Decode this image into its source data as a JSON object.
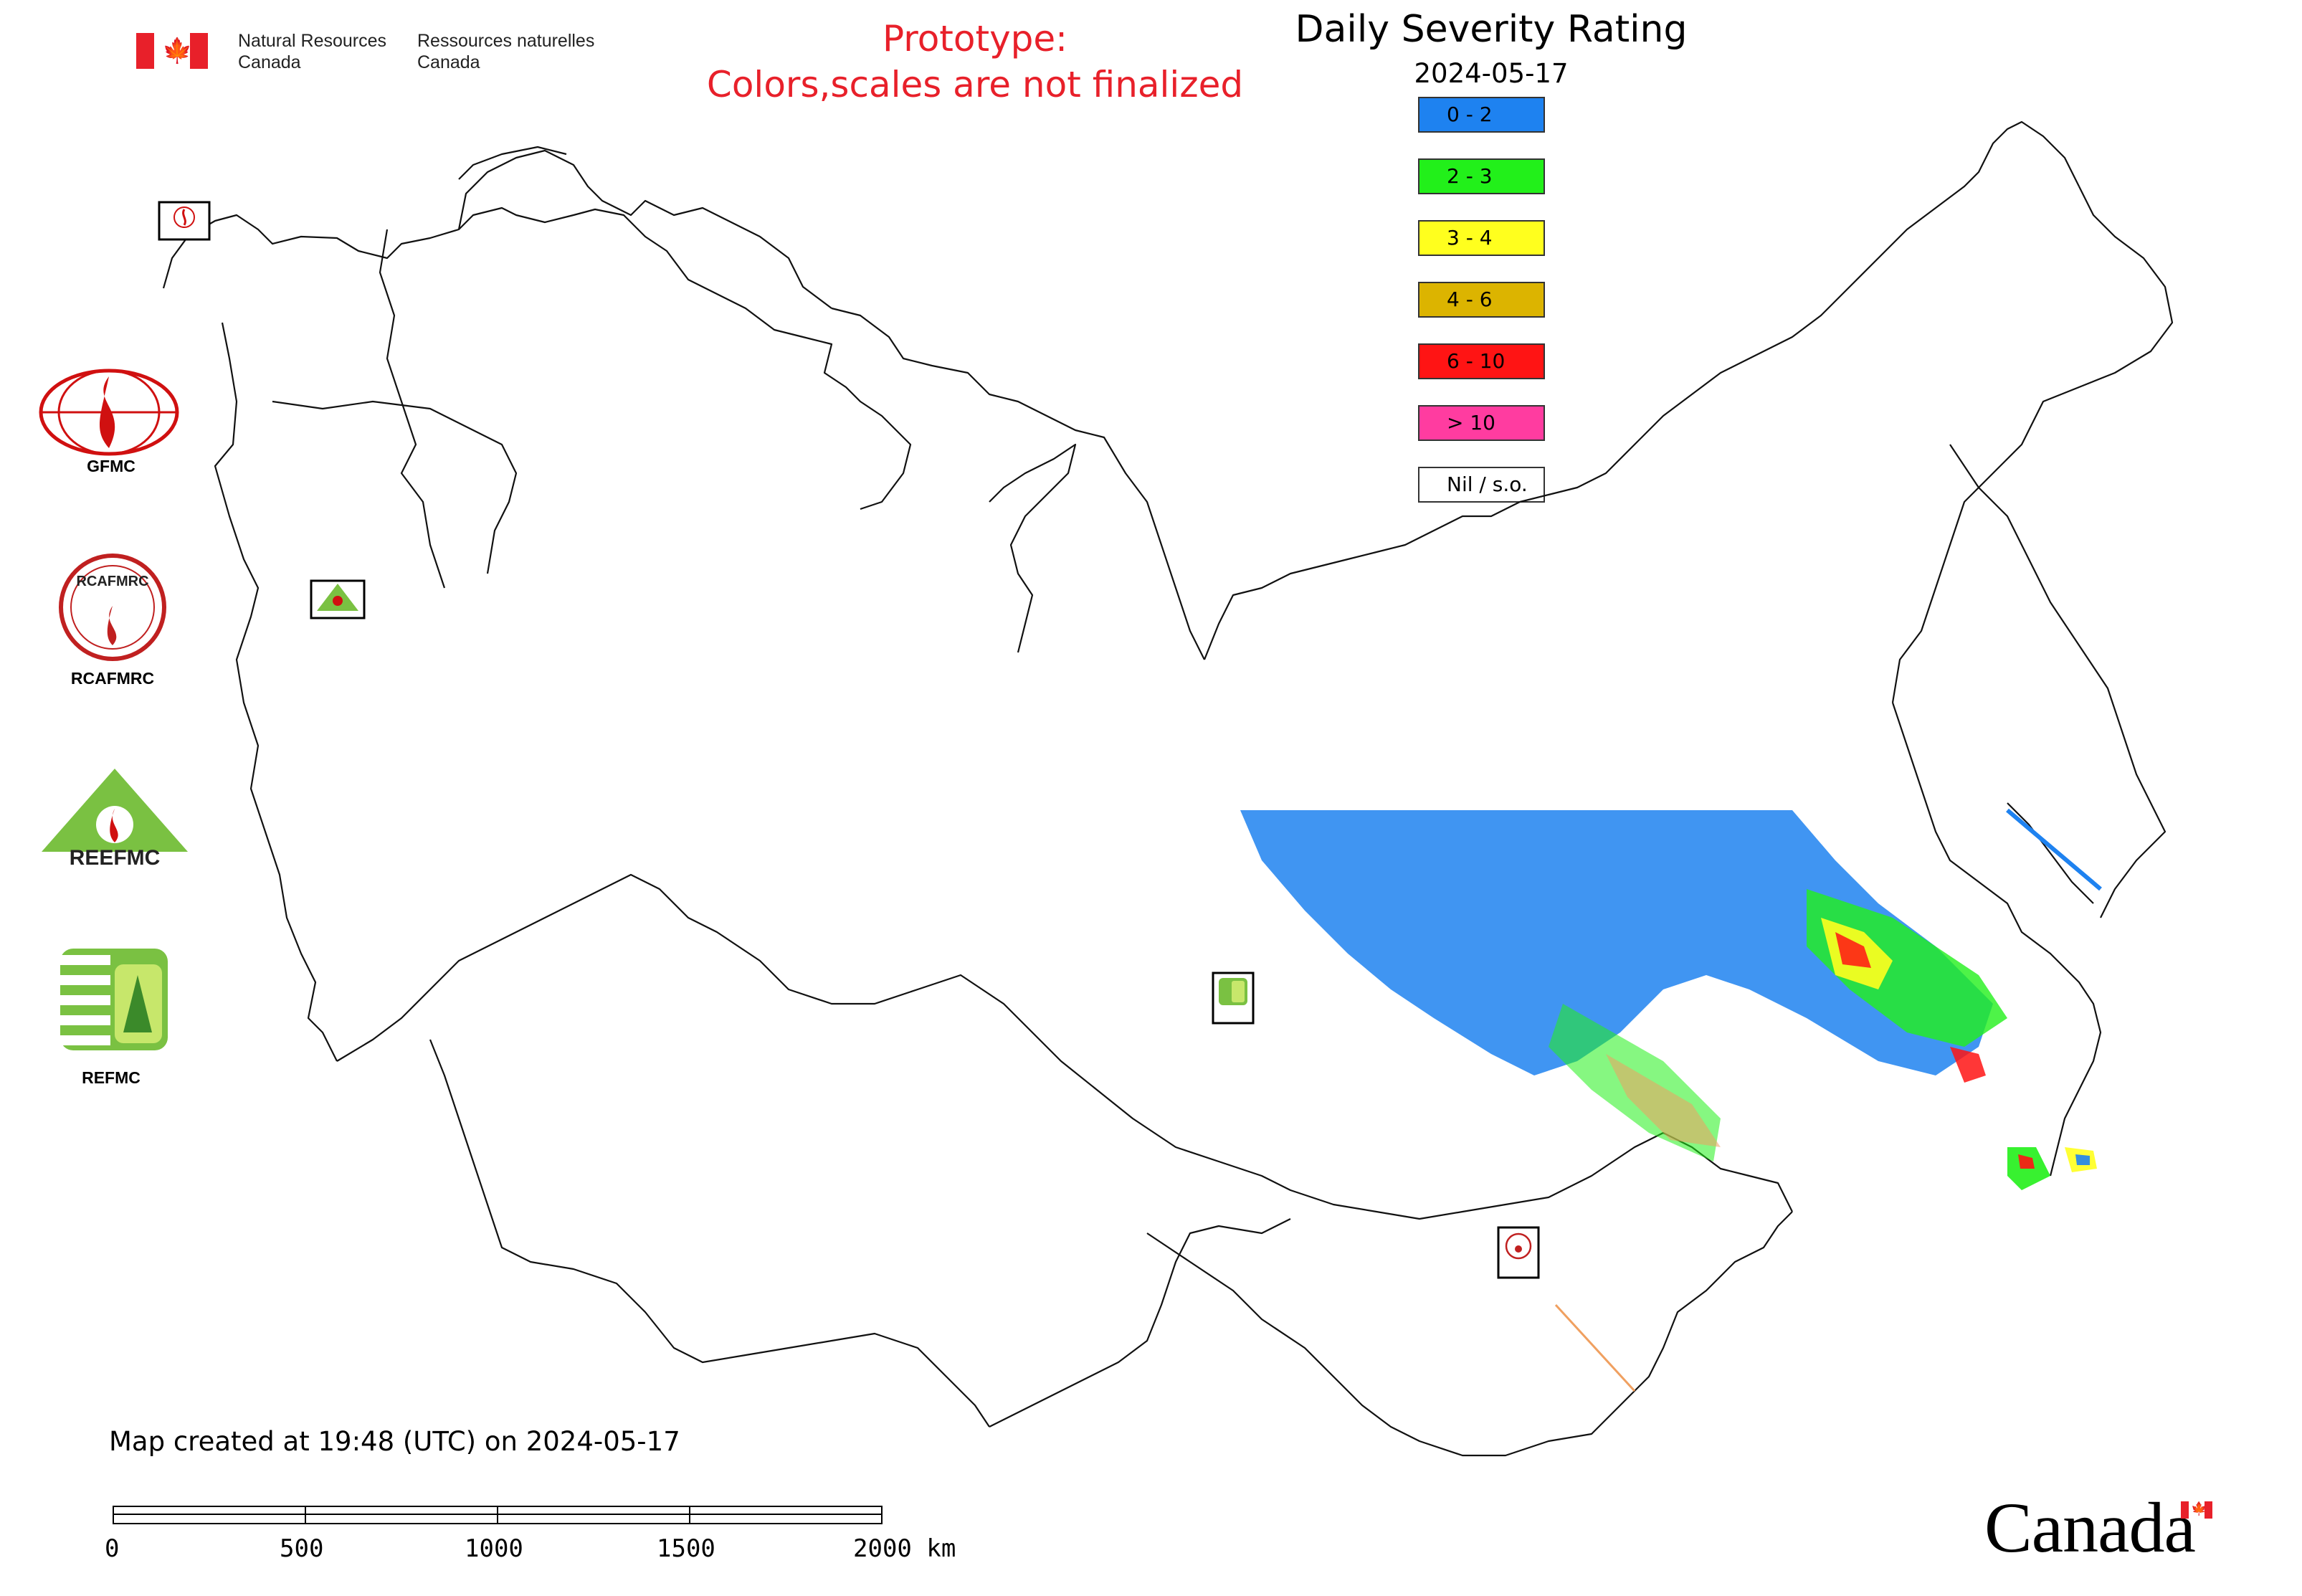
{
  "header": {
    "dept_en_line1": "Natural Resources",
    "dept_en_line2": "Canada",
    "dept_fr_line1": "Ressources naturelles",
    "dept_fr_line2": "Canada",
    "flag_icon": "canada-flag-icon"
  },
  "prototype_notice": {
    "line1": "Prototype:",
    "line2": "Colors,scales are not finalized",
    "color": "#e8202a"
  },
  "legend": {
    "title": "Daily Severity Rating",
    "date": "2024-05-17",
    "items": [
      {
        "label": "0 - 2",
        "color": "#1e82f0"
      },
      {
        "label": "2 - 3",
        "color": "#22f01a"
      },
      {
        "label": "3 - 4",
        "color": "#ffff1e"
      },
      {
        "label": "4 - 6",
        "color": "#dcb400"
      },
      {
        "label": "6 - 10",
        "color": "#ff1414"
      },
      {
        "label": "> 10",
        "color": "#ff3ca0"
      },
      {
        "label": "Nil / s.o.",
        "color": "#ffffff"
      }
    ]
  },
  "logos": [
    {
      "label": "GFMC",
      "icon": "gfmc-logo-icon"
    },
    {
      "label": "RCAFMRC",
      "icon": "rcafmrc-logo-icon",
      "text": "RCAFMRC"
    },
    {
      "label": "",
      "icon": "reefmc-logo-icon",
      "text": "REEFMC"
    },
    {
      "label": "REFMC",
      "icon": "refmc-logo-icon"
    }
  ],
  "map_markers": [
    {
      "name": "GFMC",
      "icon": "gfmc-marker-icon"
    },
    {
      "name": "REEFMC",
      "icon": "reefmc-marker-icon"
    },
    {
      "name": "REFMC",
      "icon": "refmc-marker-icon"
    },
    {
      "name": "RCAFMRC",
      "icon": "rcafmrc-marker-icon"
    }
  ],
  "footer": {
    "created": "Map created at 19:48 (UTC) on 2024-05-17",
    "scale_labels": [
      "0",
      "500",
      "1000",
      "1500",
      "2000 km"
    ],
    "wordmark": "Canada"
  }
}
